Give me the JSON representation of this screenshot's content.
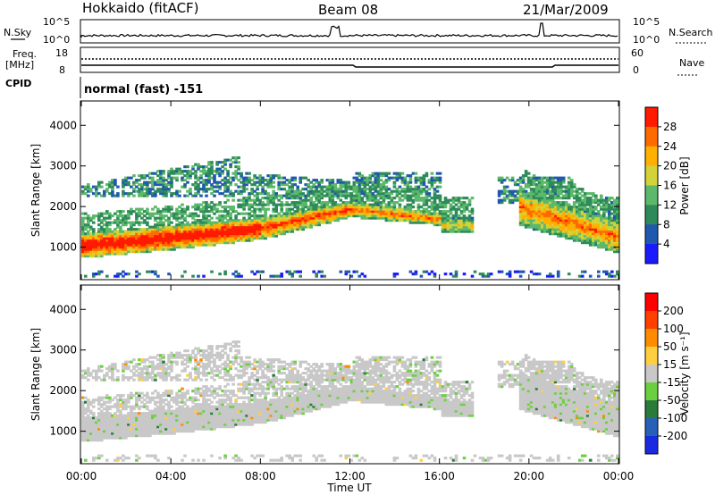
{
  "header": {
    "station": "Hokkaido (fitACF)",
    "beam": "Beam 08",
    "date": "21/Mar/2009"
  },
  "side_labels": {
    "nsky": "N.Sky",
    "nsearch": "N.Search",
    "freq_top": "Freq.",
    "freq_unit": "[MHz]",
    "nave": "Nave",
    "cpid": "CPID"
  },
  "noise_ticks": {
    "left_top": "10^5",
    "left_bottom": "10^0",
    "right_top": "10^5",
    "right_bottom": "10^0"
  },
  "freq_ticks": {
    "left_top": "18",
    "left_bottom": "8",
    "right_top": "60",
    "right_bottom": "0"
  },
  "cpid_text": "normal (fast) -151",
  "chart_data": [
    {
      "type": "heatmap",
      "name": "power",
      "ylabel": "Slant Range [km]",
      "ylim": [
        200,
        4600
      ],
      "yticks": [
        "1000",
        "2000",
        "3000",
        "4000"
      ],
      "colorbar": {
        "label": "Power [dB]",
        "ticks": [
          "4",
          "8",
          "12",
          "16",
          "20",
          "24",
          "28"
        ],
        "colors": [
          "#1a1aff",
          "#2058b0",
          "#2e8a5a",
          "#5cb86a",
          "#d2d23a",
          "#ffb000",
          "#ff6a00",
          "#ff1a00"
        ]
      }
    },
    {
      "type": "heatmap",
      "name": "velocity",
      "ylabel": "Slant Range [km]",
      "ylim": [
        200,
        4600
      ],
      "yticks": [
        "1000",
        "2000",
        "3000",
        "4000"
      ],
      "colorbar": {
        "label": "Velocity [m s⁻¹]",
        "ticks": [
          "200",
          "100",
          "50",
          "15",
          "-15",
          "-50",
          "-100",
          "-200"
        ],
        "colors": [
          "#1a2ae0",
          "#2860b8",
          "#2a7a3a",
          "#6bd040",
          "#c8c8c8",
          "#ffcf40",
          "#ff8c00",
          "#ff4000",
          "#ff0000"
        ]
      }
    }
  ],
  "xaxis": {
    "label": "Time UT",
    "ticks": [
      "00:00",
      "04:00",
      "08:00",
      "12:00",
      "16:00",
      "20:00",
      "00:00"
    ]
  }
}
